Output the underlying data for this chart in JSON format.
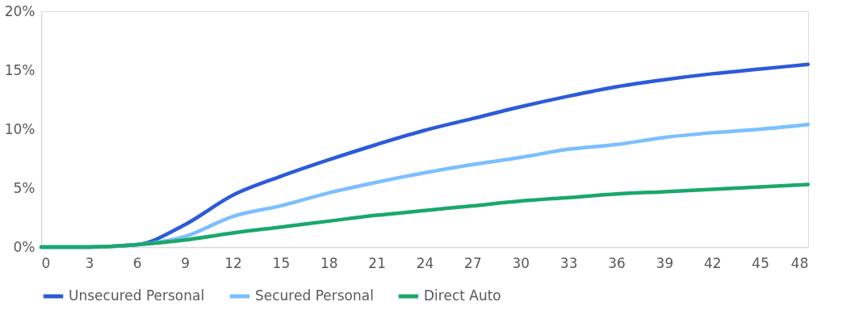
{
  "chart_data": {
    "type": "line",
    "x": [
      0,
      3,
      6,
      9,
      12,
      15,
      18,
      21,
      24,
      27,
      30,
      33,
      36,
      39,
      42,
      45,
      48
    ],
    "series": [
      {
        "name": "Unsecured Personal",
        "color": "#2b5bd9",
        "values": [
          0,
          0,
          0.2,
          1.9,
          4.4,
          6.0,
          7.4,
          8.7,
          9.9,
          10.9,
          11.9,
          12.8,
          13.6,
          14.2,
          14.7,
          15.1,
          15.5
        ]
      },
      {
        "name": "Secured Personal",
        "color": "#7bbfff",
        "values": [
          0,
          0,
          0.2,
          0.9,
          2.6,
          3.5,
          4.6,
          5.5,
          6.3,
          7.0,
          7.6,
          8.3,
          8.7,
          9.3,
          9.7,
          10.0,
          10.4
        ]
      },
      {
        "name": "Direct Auto",
        "color": "#1aa86a",
        "values": [
          0,
          0,
          0.2,
          0.6,
          1.2,
          1.7,
          2.2,
          2.7,
          3.1,
          3.5,
          3.9,
          4.2,
          4.5,
          4.7,
          4.9,
          5.1,
          5.3
        ]
      }
    ],
    "xlim": [
      0,
      48
    ],
    "xticks": [
      0,
      3,
      6,
      9,
      12,
      15,
      18,
      21,
      24,
      27,
      30,
      33,
      36,
      39,
      42,
      45,
      48
    ],
    "ylim": [
      0,
      20
    ],
    "yticks": [
      {
        "value": 0,
        "label": "0%"
      },
      {
        "value": 5,
        "label": "5%"
      },
      {
        "value": 10,
        "label": "10%"
      },
      {
        "value": 15,
        "label": "15%"
      },
      {
        "value": 20,
        "label": "20%"
      }
    ],
    "grid": false,
    "legend": "bottom",
    "marker": "none",
    "line_style": "solid"
  }
}
